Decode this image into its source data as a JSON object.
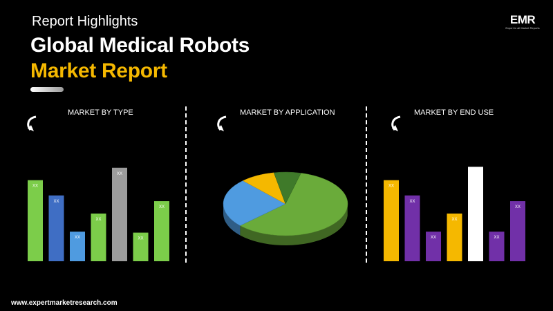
{
  "header": {
    "subtitle": "Report Highlights",
    "title_line1": "Global Medical Robots",
    "title_line2": "Market Report"
  },
  "logo": {
    "text": "EMR",
    "tagline": "Expert in all Market Reports"
  },
  "panels": {
    "type": {
      "title": "MARKET BY TYPE"
    },
    "application": {
      "title": "MARKET BY APPLICATION"
    },
    "end_use": {
      "title": "MARKET BY END USE"
    }
  },
  "footer": {
    "url": "www.expertmarketresearch.com"
  },
  "colors": {
    "accent_yellow": "#f5b800",
    "green": "#7ccd4a",
    "blue": "#3f6ec4",
    "light_blue": "#4f9be0",
    "gray": "#9c9c9c",
    "purple": "#7130a8",
    "white": "#ffffff"
  },
  "chart_data": [
    {
      "type": "bar",
      "title": "MARKET BY TYPE",
      "ylim": [
        0,
        100
      ],
      "values": [
        85,
        69,
        31,
        50,
        98,
        30,
        63
      ],
      "labels": [
        "XX",
        "XX",
        "XX",
        "XX",
        "XX",
        "XX",
        "XX"
      ],
      "colors": [
        "#7ccd4a",
        "#3f6ec4",
        "#4f9be0",
        "#7ccd4a",
        "#9c9c9c",
        "#7ccd4a",
        "#7ccd4a"
      ]
    },
    {
      "type": "pie",
      "title": "MARKET BY APPLICATION",
      "values": [
        59,
        25,
        9,
        7
      ],
      "colors": [
        "#6aab3a",
        "#4f9be0",
        "#f5b800",
        "#3f7a2a"
      ]
    },
    {
      "type": "bar",
      "title": "MARKET BY END USE",
      "ylim": [
        0,
        100
      ],
      "values": [
        85,
        69,
        31,
        50,
        99,
        31,
        63
      ],
      "labels": [
        "XX",
        "XX",
        "XX",
        "XX",
        "XX",
        "XX",
        "XX"
      ],
      "colors": [
        "#f5b800",
        "#7130a8",
        "#7130a8",
        "#f5b800",
        "#ffffff",
        "#7130a8",
        "#7130a8"
      ]
    }
  ]
}
